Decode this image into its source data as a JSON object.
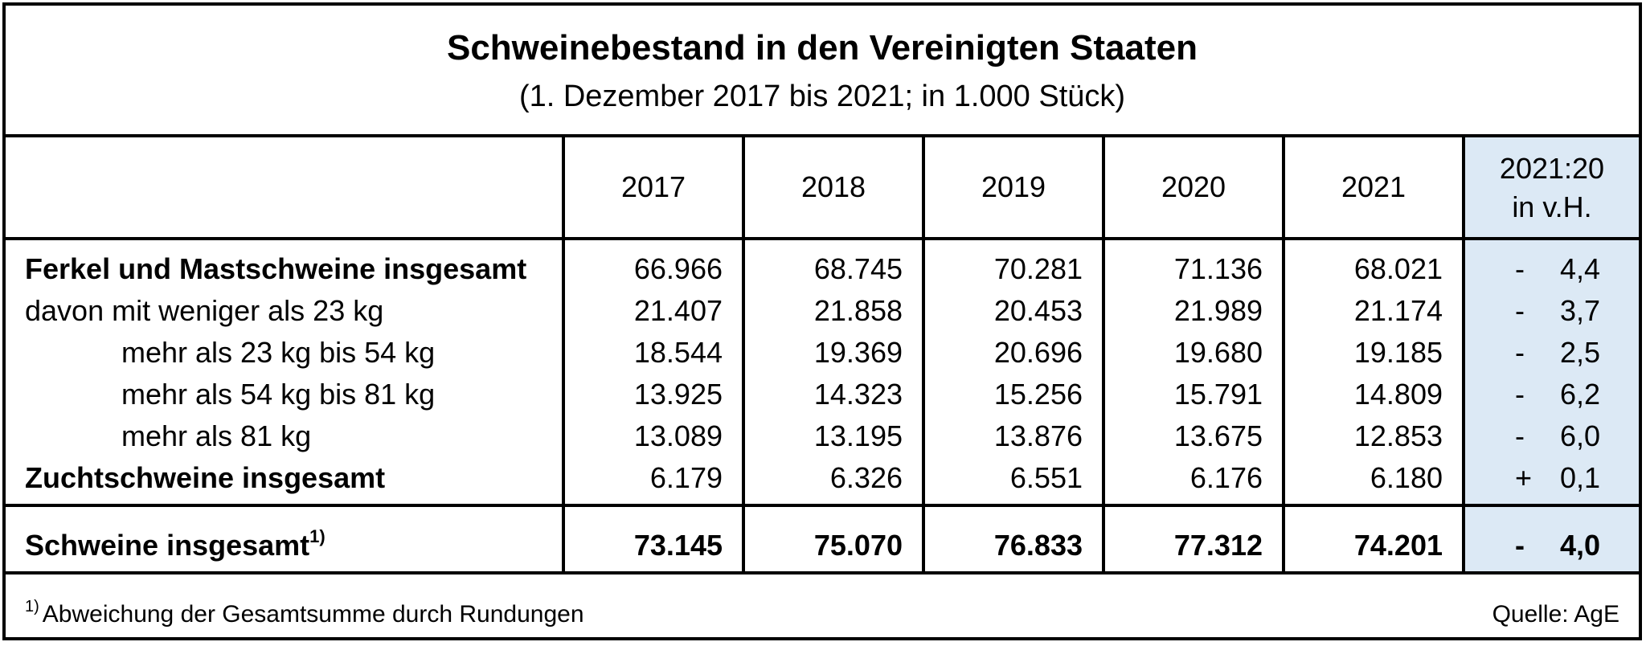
{
  "title": "Schweinebestand in den Vereinigten Staaten",
  "subtitle": "(1. Dezember 2017 bis 2021; in 1.000 Stück)",
  "columns": [
    "2017",
    "2018",
    "2019",
    "2020",
    "2021"
  ],
  "change_header": [
    "2021:20",
    "in v.H."
  ],
  "rows": [
    {
      "label": "Ferkel und Mastschweine insgesamt",
      "values": [
        "66.966",
        "68.745",
        "70.281",
        "71.136",
        "68.021"
      ],
      "sign": "-",
      "change": "4,4"
    },
    {
      "label": "davon mit weniger als 23 kg",
      "values": [
        "21.407",
        "21.858",
        "20.453",
        "21.989",
        "21.174"
      ],
      "sign": "-",
      "change": "3,7"
    },
    {
      "label": "mehr als 23 kg bis 54 kg",
      "values": [
        "18.544",
        "19.369",
        "20.696",
        "19.680",
        "19.185"
      ],
      "sign": "-",
      "change": "2,5"
    },
    {
      "label": "mehr als 54 kg bis 81 kg",
      "values": [
        "13.925",
        "14.323",
        "15.256",
        "15.791",
        "14.809"
      ],
      "sign": "-",
      "change": "6,2"
    },
    {
      "label": "mehr als 81 kg",
      "values": [
        "13.089",
        "13.195",
        "13.876",
        "13.675",
        "12.853"
      ],
      "sign": "-",
      "change": "6,0"
    },
    {
      "label": "Zuchtschweine insgesamt",
      "values": [
        "6.179",
        "6.326",
        "6.551",
        "6.176",
        "6.180"
      ],
      "sign": "+",
      "change": "0,1"
    }
  ],
  "total": {
    "label": "Schweine insgesamt",
    "footnote_mark": "1)",
    "values": [
      "73.145",
      "75.070",
      "76.833",
      "77.312",
      "74.201"
    ],
    "sign": "-",
    "change": "4,0"
  },
  "footnote": {
    "mark": "1)",
    "text": "Abweichung der Gesamtsumme durch Rundungen"
  },
  "source": "Quelle: AgE",
  "colors": {
    "highlight": "#dce9f5",
    "border": "#000000"
  }
}
